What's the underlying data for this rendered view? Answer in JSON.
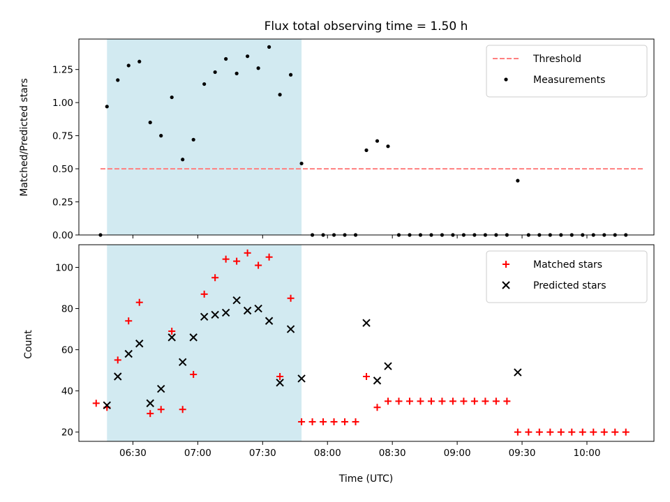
{
  "chart_data": [
    {
      "type": "scatter",
      "title": "Flux total observing time = 1.50 h",
      "xlabel": "",
      "ylabel": "Matched/Predicted stars",
      "ylim": [
        0,
        1.48
      ],
      "yticks": [
        0.0,
        0.25,
        0.5,
        0.75,
        1.0,
        1.25
      ],
      "ytick_labels": [
        "0.00",
        "0.25",
        "0.50",
        "0.75",
        "1.00",
        "1.25"
      ],
      "xlim": [
        "06:05",
        "10:31"
      ],
      "xticks": [
        "06:30",
        "07:00",
        "07:30",
        "08:00",
        "08:30",
        "09:00",
        "09:30",
        "10:00"
      ],
      "xtick_labels": [],
      "shaded_span": [
        "06:18",
        "07:48"
      ],
      "shade_color": "#add8e6",
      "legend_position": "top-right",
      "threshold": {
        "name": "Threshold",
        "y": 0.5,
        "x_range": [
          "06:15",
          "10:26"
        ],
        "color": "#ff7f7f"
      },
      "series": [
        {
          "name": "Measurements",
          "color": "#000000",
          "x": [
            "06:15",
            "06:18",
            "06:23",
            "06:28",
            "06:33",
            "06:38",
            "06:43",
            "06:48",
            "06:53",
            "06:58",
            "07:03",
            "07:08",
            "07:13",
            "07:18",
            "07:23",
            "07:28",
            "07:33",
            "07:38",
            "07:43",
            "07:48",
            "07:53",
            "07:58",
            "08:03",
            "08:08",
            "08:13",
            "08:18",
            "08:23",
            "08:28",
            "08:33",
            "08:38",
            "08:43",
            "08:48",
            "08:53",
            "08:58",
            "09:03",
            "09:08",
            "09:13",
            "09:18",
            "09:23",
            "09:28",
            "09:33",
            "09:38",
            "09:43",
            "09:48",
            "09:53",
            "09:58",
            "10:03",
            "10:08",
            "10:13",
            "10:18"
          ],
          "values": [
            0.0,
            0.97,
            1.17,
            1.28,
            1.31,
            0.85,
            0.75,
            1.04,
            0.57,
            0.72,
            1.14,
            1.23,
            1.33,
            1.22,
            1.35,
            1.26,
            1.42,
            1.06,
            1.21,
            0.54,
            0.0,
            0.0,
            0.0,
            0.0,
            0.0,
            0.64,
            0.71,
            0.67,
            0.0,
            0.0,
            0.0,
            0.0,
            0.0,
            0.0,
            0.0,
            0.0,
            0.0,
            0.0,
            0.0,
            0.41,
            0.0,
            0.0,
            0.0,
            0.0,
            0.0,
            0.0,
            0.0,
            0.0,
            0.0,
            0.0
          ]
        }
      ]
    },
    {
      "type": "scatter",
      "title": "",
      "xlabel": "Time (UTC)",
      "ylabel": "Count",
      "ylim": [
        15.5,
        111
      ],
      "yticks": [
        20,
        40,
        60,
        80,
        100
      ],
      "ytick_labels": [
        "20",
        "40",
        "60",
        "80",
        "100"
      ],
      "xlim": [
        "06:05",
        "10:31"
      ],
      "xticks": [
        "06:30",
        "07:00",
        "07:30",
        "08:00",
        "08:30",
        "09:00",
        "09:30",
        "10:00"
      ],
      "xtick_labels": [
        "06:30",
        "07:00",
        "07:30",
        "08:00",
        "08:30",
        "09:00",
        "09:30",
        "10:00"
      ],
      "shaded_span": [
        "06:18",
        "07:48"
      ],
      "shade_color": "#add8e6",
      "legend_position": "top-right",
      "series": [
        {
          "name": "Matched stars",
          "marker": "plus",
          "color": "#ff0000",
          "x": [
            "06:13",
            "06:18",
            "06:23",
            "06:28",
            "06:33",
            "06:38",
            "06:43",
            "06:48",
            "06:53",
            "06:58",
            "07:03",
            "07:08",
            "07:13",
            "07:18",
            "07:23",
            "07:28",
            "07:33",
            "07:38",
            "07:43",
            "07:48",
            "07:53",
            "07:58",
            "08:03",
            "08:08",
            "08:13",
            "08:18",
            "08:23",
            "08:28",
            "08:33",
            "08:38",
            "08:43",
            "08:48",
            "08:53",
            "08:58",
            "09:03",
            "09:08",
            "09:13",
            "09:18",
            "09:23",
            "09:28",
            "09:33",
            "09:38",
            "09:43",
            "09:48",
            "09:53",
            "09:58",
            "10:03",
            "10:08",
            "10:13",
            "10:18"
          ],
          "values": [
            34,
            32,
            55,
            74,
            83,
            29,
            31,
            69,
            31,
            48,
            87,
            95,
            104,
            103,
            107,
            101,
            105,
            47,
            85,
            25,
            25,
            25,
            25,
            25,
            25,
            47,
            32,
            35,
            35,
            35,
            35,
            35,
            35,
            35,
            35,
            35,
            35,
            35,
            35,
            20,
            20,
            20,
            20,
            20,
            20,
            20,
            20,
            20,
            20,
            20
          ]
        },
        {
          "name": "Predicted stars",
          "marker": "x",
          "color": "#000000",
          "x": [
            "06:18",
            "06:23",
            "06:28",
            "06:33",
            "06:38",
            "06:43",
            "06:48",
            "06:53",
            "06:58",
            "07:03",
            "07:08",
            "07:13",
            "07:18",
            "07:23",
            "07:28",
            "07:33",
            "07:38",
            "07:43",
            "07:48",
            "08:18",
            "08:23",
            "08:28",
            "09:28"
          ],
          "values": [
            33,
            47,
            58,
            63,
            34,
            41,
            66,
            54,
            66,
            76,
            77,
            78,
            84,
            79,
            80,
            74,
            44,
            70,
            46,
            73,
            45,
            52,
            49
          ]
        }
      ]
    }
  ]
}
